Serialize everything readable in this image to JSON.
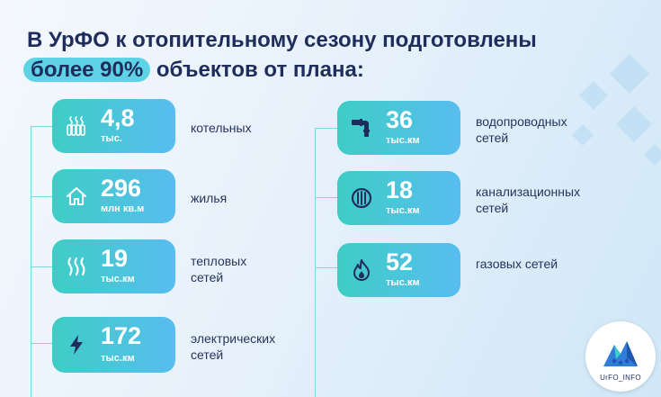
{
  "title": {
    "line1": "В УрФО к отопительному сезону подготовлены",
    "highlight": "более 90%",
    "line2_rest": " объектов от плана:"
  },
  "left_items": [
    {
      "icon": "radiator-icon",
      "value": "4,8",
      "unit": "тыс.",
      "label": "котельных"
    },
    {
      "icon": "house-icon",
      "value": "296",
      "unit": "млн кв.м",
      "label": "жилья"
    },
    {
      "icon": "heat-waves-icon",
      "value": "19",
      "unit": "тыс.км",
      "label": "тепловых сетей"
    },
    {
      "icon": "lightning-icon",
      "value": "172",
      "unit": "тыс.км",
      "label": "электрических сетей"
    }
  ],
  "right_items": [
    {
      "icon": "pipe-icon",
      "value": "36",
      "unit": "тыс.км",
      "label": "водопроводных сетей"
    },
    {
      "icon": "sewer-grate-icon",
      "value": "18",
      "unit": "тыс.км",
      "label": "канализационных сетей"
    },
    {
      "icon": "gas-flame-icon",
      "value": "52",
      "unit": "тыс.км",
      "label": "газовых сетей"
    }
  ],
  "logo": {
    "text": "UrFO_INFO"
  },
  "colors": {
    "card_start": "#3ecdc5",
    "card_end": "#58bdf0",
    "title": "#1f2d5c",
    "highlight": "#5fd3e6",
    "line": "#7fd6df"
  }
}
